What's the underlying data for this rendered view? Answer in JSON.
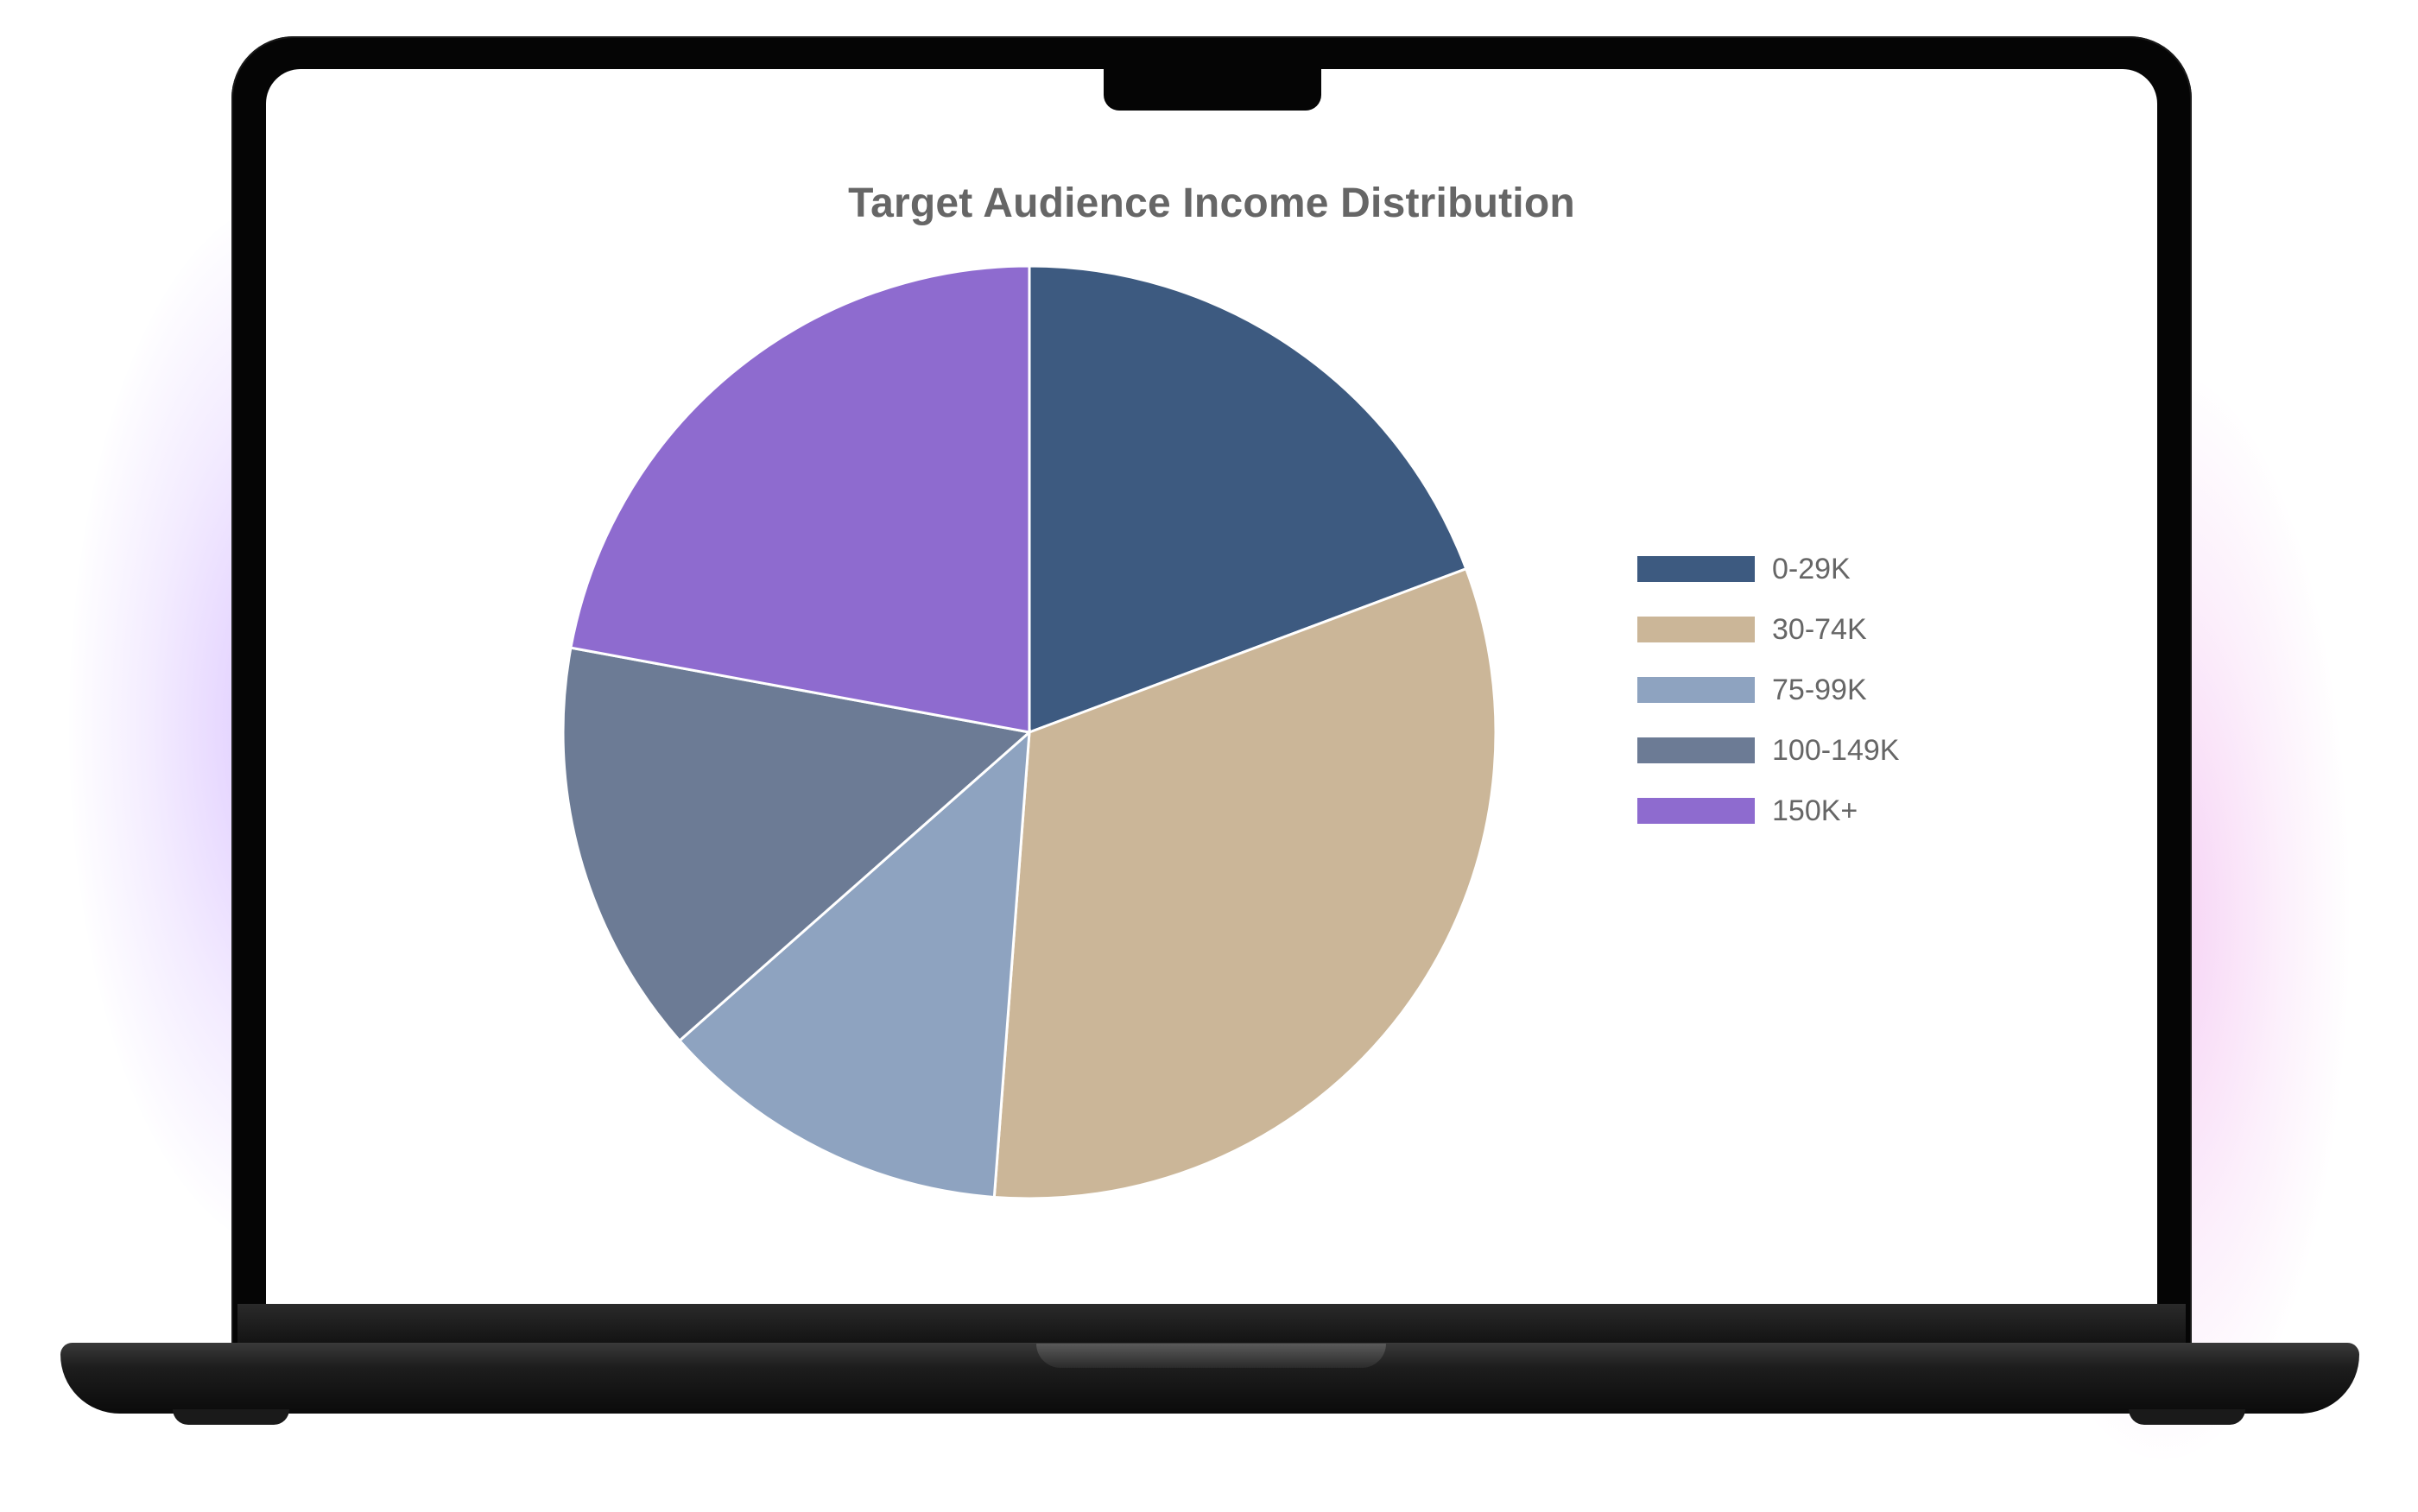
{
  "chart_data": {
    "type": "pie",
    "title": "Target Audience Income Distribution",
    "categories": [
      "0-29K",
      "30-74K",
      "75-99K",
      "100-149K",
      "150K+"
    ],
    "values": [
      19.3,
      31.9,
      12.3,
      14.4,
      22.1
    ],
    "colors": [
      "#3d5a80",
      "#cbb698",
      "#8ea3c0",
      "#6c7b95",
      "#8e6bcf"
    ],
    "legend_placement": "right",
    "start_angle": "top",
    "direction": "clockwise"
  }
}
